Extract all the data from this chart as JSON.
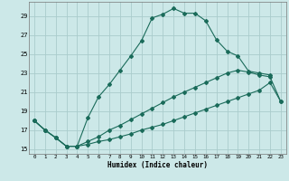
{
  "xlabel": "Humidex (Indice chaleur)",
  "bg_color": "#cce8e8",
  "grid_color": "#aacccc",
  "line_color": "#1a6b5a",
  "xlim": [
    -0.5,
    23.5
  ],
  "ylim": [
    14.5,
    30.5
  ],
  "yticks": [
    15,
    17,
    19,
    21,
    23,
    25,
    27,
    29
  ],
  "xticks": [
    0,
    1,
    2,
    3,
    4,
    5,
    6,
    7,
    8,
    9,
    10,
    11,
    12,
    13,
    14,
    15,
    16,
    17,
    18,
    19,
    20,
    21,
    22,
    23
  ],
  "series1_x": [
    0,
    1,
    2,
    3,
    4,
    5,
    6,
    7,
    8,
    9,
    10,
    11,
    12,
    13,
    14,
    15,
    16,
    17,
    18,
    19,
    20,
    21,
    22
  ],
  "series1_y": [
    18.0,
    17.0,
    16.2,
    15.3,
    15.3,
    18.3,
    20.5,
    21.8,
    23.3,
    24.8,
    26.4,
    28.8,
    29.2,
    29.8,
    29.3,
    29.3,
    28.5,
    26.5,
    25.3,
    24.8,
    23.2,
    23.0,
    22.8
  ],
  "series2_x": [
    0,
    1,
    2,
    3,
    4,
    5,
    6,
    7,
    8,
    9,
    10,
    11,
    12,
    13,
    14,
    15,
    16,
    17,
    18,
    19,
    20,
    21,
    22,
    23
  ],
  "series2_y": [
    18.0,
    17.0,
    16.2,
    15.3,
    15.3,
    15.5,
    15.8,
    16.0,
    16.3,
    16.6,
    17.0,
    17.3,
    17.6,
    18.0,
    18.4,
    18.8,
    19.2,
    19.6,
    20.0,
    20.4,
    20.8,
    21.2,
    22.0,
    20.0
  ],
  "series3_x": [
    0,
    1,
    2,
    3,
    4,
    5,
    6,
    7,
    8,
    9,
    10,
    11,
    12,
    13,
    14,
    15,
    16,
    17,
    18,
    19,
    20,
    21,
    22,
    23
  ],
  "series3_y": [
    18.0,
    17.0,
    16.2,
    15.3,
    15.3,
    15.8,
    16.3,
    17.0,
    17.5,
    18.1,
    18.7,
    19.3,
    19.9,
    20.5,
    21.0,
    21.5,
    22.0,
    22.5,
    23.0,
    23.3,
    23.1,
    22.8,
    22.6,
    20.0
  ]
}
